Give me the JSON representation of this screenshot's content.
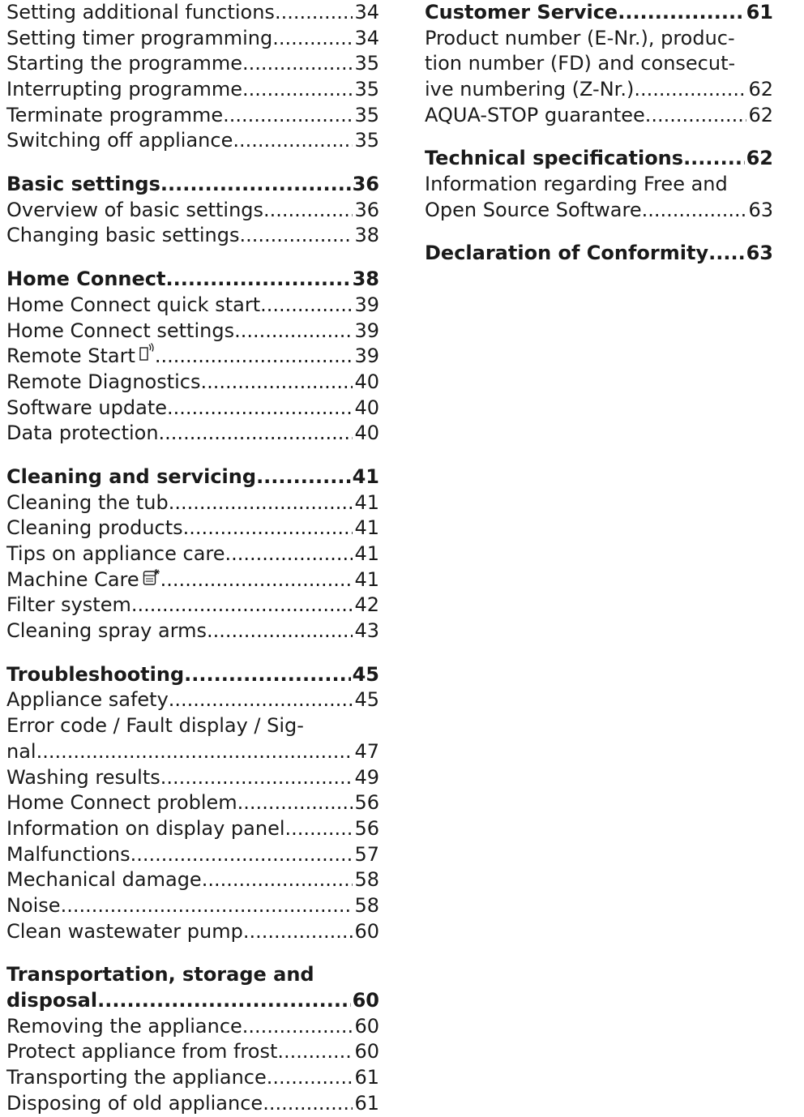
{
  "left_column": {
    "group_1": [
      {
        "title": "Setting additional functions",
        "page": "34"
      },
      {
        "title": "Setting timer programming",
        "page": "34"
      },
      {
        "title": "Starting the programme",
        "page": "35"
      },
      {
        "title": "Interrupting programme",
        "page": "35"
      },
      {
        "title": "Terminate programme",
        "page": "35"
      },
      {
        "title": "Switching off appliance",
        "page": "35"
      }
    ],
    "basic_settings": {
      "heading": {
        "title": "Basic settings",
        "page": "36"
      },
      "items": [
        {
          "title": "Overview of basic settings",
          "page": "36"
        },
        {
          "title": "Changing basic settings",
          "page": "38"
        }
      ]
    },
    "home_connect": {
      "heading": {
        "title": "Home Connect",
        "page": "38"
      },
      "items": [
        {
          "title": "Home Connect quick start",
          "page": "39"
        },
        {
          "title": "Home Connect settings",
          "page": "39"
        },
        {
          "title": "Remote Start",
          "page": "39",
          "icon": "remote-start-icon"
        },
        {
          "title": "Remote Diagnostics",
          "page": "40"
        },
        {
          "title": "Software update",
          "page": "40"
        },
        {
          "title": "Data protection",
          "page": "40"
        }
      ]
    },
    "cleaning": {
      "heading": {
        "title": "Cleaning and servicing",
        "page": "41"
      },
      "items": [
        {
          "title": "Cleaning the tub",
          "page": "41"
        },
        {
          "title": "Cleaning products",
          "page": "41"
        },
        {
          "title": "Tips on appliance care",
          "page": "41"
        },
        {
          "title": "Machine Care",
          "page": "41",
          "icon": "machine-care-icon"
        },
        {
          "title": "Filter system",
          "page": "42"
        },
        {
          "title": "Cleaning spray arms",
          "page": "43"
        }
      ]
    },
    "troubleshooting": {
      "heading": {
        "title": "Troubleshooting",
        "page": "45"
      },
      "item_1": {
        "title": "Appliance safety",
        "page": "45"
      },
      "error_code": {
        "line1": "Error code / Fault display / Sig-",
        "line2": "nal",
        "page": "47"
      },
      "items": [
        {
          "title": "Washing results",
          "page": "49"
        },
        {
          "title": "Home Connect problem",
          "page": "56"
        },
        {
          "title": "Information on display panel",
          "page": "56"
        },
        {
          "title": "Malfunctions",
          "page": "57"
        },
        {
          "title": "Mechanical damage",
          "page": "58"
        },
        {
          "title": "Noise",
          "page": "58"
        },
        {
          "title": "Clean wastewater pump",
          "page": "60"
        }
      ]
    },
    "transportation": {
      "heading": {
        "line1": "Transportation, storage and",
        "line2": "disposal",
        "page": "60"
      },
      "items": [
        {
          "title": "Removing the appliance",
          "page": "60"
        },
        {
          "title": "Protect appliance from frost",
          "page": "60"
        },
        {
          "title": "Transporting the appliance",
          "page": "61"
        },
        {
          "title": "Disposing of old appliance",
          "page": "61"
        }
      ]
    }
  },
  "right_column": {
    "customer_service": {
      "heading": {
        "title": "Customer Service",
        "page": "61"
      },
      "product_number": {
        "line1": "Product number (E-Nr.), produc-",
        "line2": "tion number (FD) and consecut-",
        "line3": "ive numbering (Z-Nr.)",
        "page": "62"
      },
      "aqua_stop": {
        "title": "AQUA-STOP guarantee",
        "page": "62"
      }
    },
    "technical": {
      "heading": {
        "title": "Technical specifications",
        "page": "62"
      },
      "foss": {
        "line1": "Information regarding Free and",
        "line2": "Open Source Software",
        "page": "63"
      }
    },
    "declaration": {
      "title": "Declaration of Conformity",
      "page": "63"
    }
  }
}
